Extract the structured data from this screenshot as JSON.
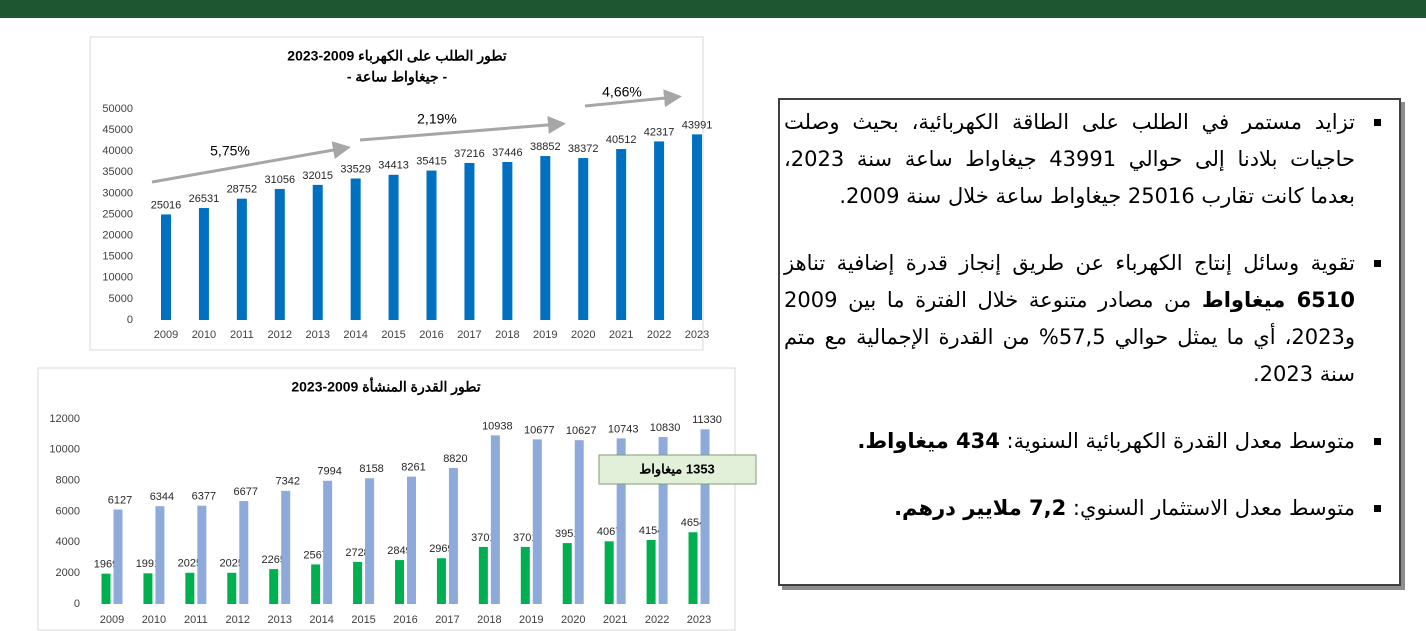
{
  "chart_data": [
    {
      "type": "bar",
      "title": "تطور الطلب على الكهرباء 2009-2023",
      "subtitle": "- جيغاواط ساعة -",
      "categories": [
        "2009",
        "2010",
        "2011",
        "2012",
        "2013",
        "2014",
        "2015",
        "2016",
        "2017",
        "2018",
        "2019",
        "2020",
        "2021",
        "2022",
        "2023"
      ],
      "series": [
        {
          "color": "#0070c0",
          "values": [
            25016,
            26531,
            28752,
            31056,
            32015,
            33529,
            34413,
            35415,
            37216,
            37446,
            38852,
            38372,
            40512,
            42317,
            43991
          ]
        }
      ],
      "ylim": [
        0,
        50000
      ],
      "yticks": [
        0,
        5000,
        10000,
        15000,
        20000,
        25000,
        30000,
        35000,
        40000,
        45000,
        50000
      ],
      "grid": false,
      "annotations": [
        "5,75%",
        "2,19%",
        "4,66%"
      ]
    },
    {
      "type": "bar",
      "title": "تطور القدرة المنشأة 2009-2023",
      "categories": [
        "2009",
        "2010",
        "2011",
        "2012",
        "2013",
        "2014",
        "2015",
        "2016",
        "2017",
        "2018",
        "2019",
        "2020",
        "2021",
        "2022",
        "2023"
      ],
      "series": [
        {
          "color": "#00b050",
          "values": [
            1969,
            1991,
            2025,
            2025,
            2265,
            2567,
            2728,
            2849,
            2969,
            3701,
            3701,
            3951,
            4067,
            4154,
            4654
          ]
        },
        {
          "color": "#8eaadb",
          "values": [
            6127,
            6344,
            6377,
            6677,
            7342,
            7994,
            8158,
            8261,
            8820,
            10938,
            10677,
            10627,
            10743,
            10830,
            11330
          ]
        }
      ],
      "ylim": [
        0,
        12000
      ],
      "yticks": [
        0,
        2000,
        4000,
        6000,
        8000,
        10000,
        12000
      ],
      "grid": false,
      "annotations": [
        "1353 ميغاواط"
      ]
    }
  ],
  "text_box": {
    "bullets": [
      [
        {
          "text": "تزايد مستمر في الطلب على الطاقة الكهربائية، بحيث وصلت حاجيات بلادنا إلى حوالي 43991 جيغاواط ساعة سنة 2023، بعدما كانت تقارب 25016 جيغاواط ساعة خلال سنة 2009.",
          "bold": false
        }
      ],
      [
        {
          "text": "تقوية وسائل إنتاج الكهرباء عن طريق إنجاز قدرة إضافية تناهز ",
          "bold": false
        },
        {
          "text": "6510 ميغاواط",
          "bold": true
        },
        {
          "text": " من مصادر متنوعة خلال الفترة ما بين 2009 و2023، أي ما يمثل حوالي 57,5% من القدرة الإجمالية مع متم سنة 2023.",
          "bold": false
        }
      ],
      [
        {
          "text": "متوسط معدل القدرة الكهربائية السنوية: ",
          "bold": false
        },
        {
          "text": "434 ميغاواط.",
          "bold": true
        }
      ],
      [
        {
          "text": "متوسط معدل الاستثمار السنوي: ",
          "bold": false
        },
        {
          "text": "7,2 ملايير درهم.",
          "bold": true
        }
      ]
    ]
  }
}
